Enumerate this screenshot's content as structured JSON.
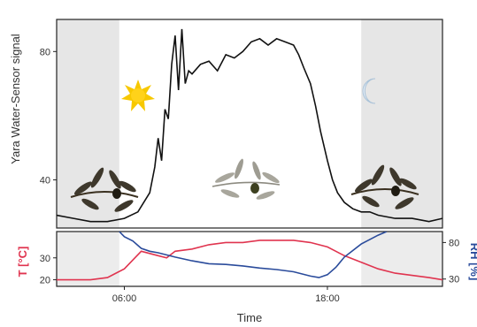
{
  "chart_data": [
    {
      "type": "line",
      "panel": "top",
      "ylabel": "Yara Water-Sensor signal",
      "ylim": [
        25,
        90
      ],
      "yticks": [
        40,
        80
      ],
      "xlim_hours": [
        2.0,
        24.8
      ],
      "night_shading": [
        [
          2.0,
          5.7
        ],
        [
          20.0,
          24.8
        ]
      ],
      "series": [
        {
          "color": "#111111",
          "x": [
            2.0,
            3.0,
            4.0,
            5.0,
            6.0,
            6.8,
            7.5,
            7.8,
            8.0,
            8.2,
            8.4,
            8.6,
            8.8,
            9.0,
            9.2,
            9.4,
            9.6,
            9.8,
            10.0,
            10.5,
            11.0,
            11.5,
            12.0,
            12.5,
            13.0,
            13.5,
            14.0,
            14.5,
            15.0,
            15.5,
            16.0,
            16.3,
            16.6,
            17.0,
            17.3,
            17.6,
            18.0,
            18.3,
            18.6,
            19.0,
            19.5,
            20.0,
            20.5,
            21.0,
            22.0,
            23.0,
            24.0,
            24.8
          ],
          "values": [
            29,
            28,
            27,
            27,
            28,
            30,
            36,
            44,
            53,
            46,
            62,
            59,
            76,
            85,
            68,
            87,
            70,
            74,
            73,
            76,
            77,
            74,
            79,
            78,
            80,
            83,
            84,
            82,
            84,
            83,
            82,
            79,
            75,
            70,
            63,
            55,
            46,
            40,
            36,
            33,
            31,
            30,
            30,
            29,
            28,
            28,
            27,
            28
          ]
        }
      ],
      "icons": [
        "sun-icon",
        "moon-icon"
      ]
    },
    {
      "type": "line",
      "panel": "bottom",
      "xlabel": "Time",
      "xticks": [
        "06:00",
        "18:00"
      ],
      "ylabel_left": "T [°C]",
      "ylabel_right": "RH [%]",
      "ylim_left": [
        17,
        42
      ],
      "ylim_right": [
        20,
        95
      ],
      "yticks_left": [
        20,
        30
      ],
      "yticks_right": [
        30,
        80
      ],
      "series": [
        {
          "axis": "left",
          "color": "#e0344f",
          "x": [
            2.0,
            3.0,
            4.0,
            5.0,
            6.0,
            6.5,
            7.0,
            7.5,
            8.0,
            8.5,
            9.0,
            10.0,
            11.0,
            12.0,
            13.0,
            14.0,
            15.0,
            16.0,
            17.0,
            18.0,
            19.0,
            20.0,
            21.0,
            22.0,
            23.0,
            24.0,
            24.8
          ],
          "values": [
            20,
            20,
            20,
            21,
            25,
            29,
            33,
            32,
            31,
            30,
            33,
            34,
            36,
            37,
            37,
            38,
            38,
            38,
            37,
            35,
            31,
            28,
            25,
            23,
            22,
            21,
            20
          ]
        },
        {
          "axis": "right",
          "color": "#2a4b9b",
          "x": [
            5.7,
            6.0,
            6.5,
            7.0,
            7.5,
            8.0,
            9.0,
            10.0,
            11.0,
            12.0,
            13.0,
            14.0,
            15.0,
            16.0,
            17.0,
            17.5,
            18.0,
            18.5,
            19.0,
            20.0,
            21.0,
            21.5
          ],
          "values": [
            95,
            88,
            82,
            72,
            68,
            66,
            60,
            55,
            51,
            50,
            48,
            45,
            43,
            40,
            34,
            32,
            36,
            46,
            60,
            78,
            90,
            95
          ]
        }
      ]
    }
  ]
}
